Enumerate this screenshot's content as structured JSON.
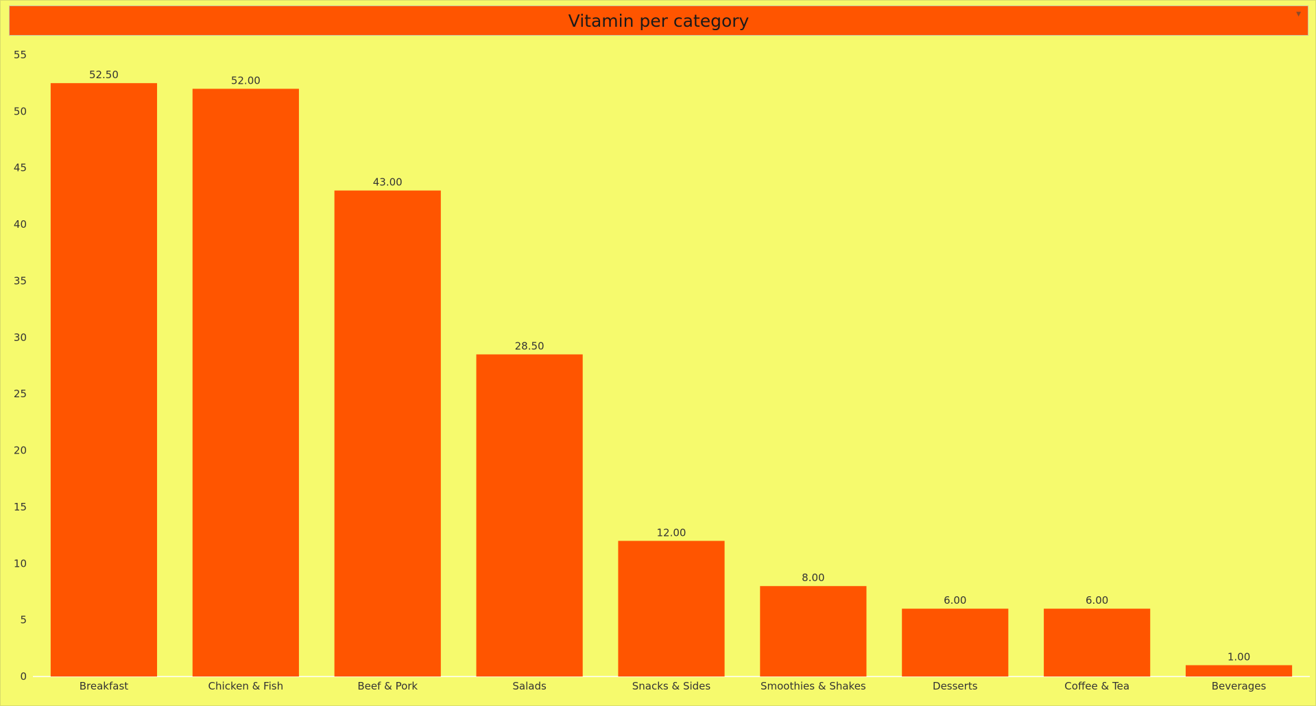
{
  "chart_data": {
    "type": "bar",
    "title": "Vitamin per category",
    "categories": [
      "Breakfast",
      "Chicken & Fish",
      "Beef & Pork",
      "Salads",
      "Snacks & Sides",
      "Smoothies & Shakes",
      "Desserts",
      "Coffee & Tea",
      "Beverages"
    ],
    "values": [
      52.5,
      52.0,
      43.0,
      28.5,
      12.0,
      8.0,
      6.0,
      6.0,
      1.0
    ],
    "data_labels": [
      "52.50",
      "52.00",
      "43.00",
      "28.50",
      "12.00",
      "8.00",
      "6.00",
      "6.00",
      "1.00"
    ],
    "yticks": [
      0,
      5,
      10,
      15,
      20,
      25,
      30,
      35,
      40,
      45,
      50,
      55
    ],
    "ylim": [
      0,
      55
    ],
    "xlabel": "",
    "ylabel": "",
    "grid": false,
    "bar_color": "#ff5500",
    "background_color": "#f6fa6d"
  }
}
